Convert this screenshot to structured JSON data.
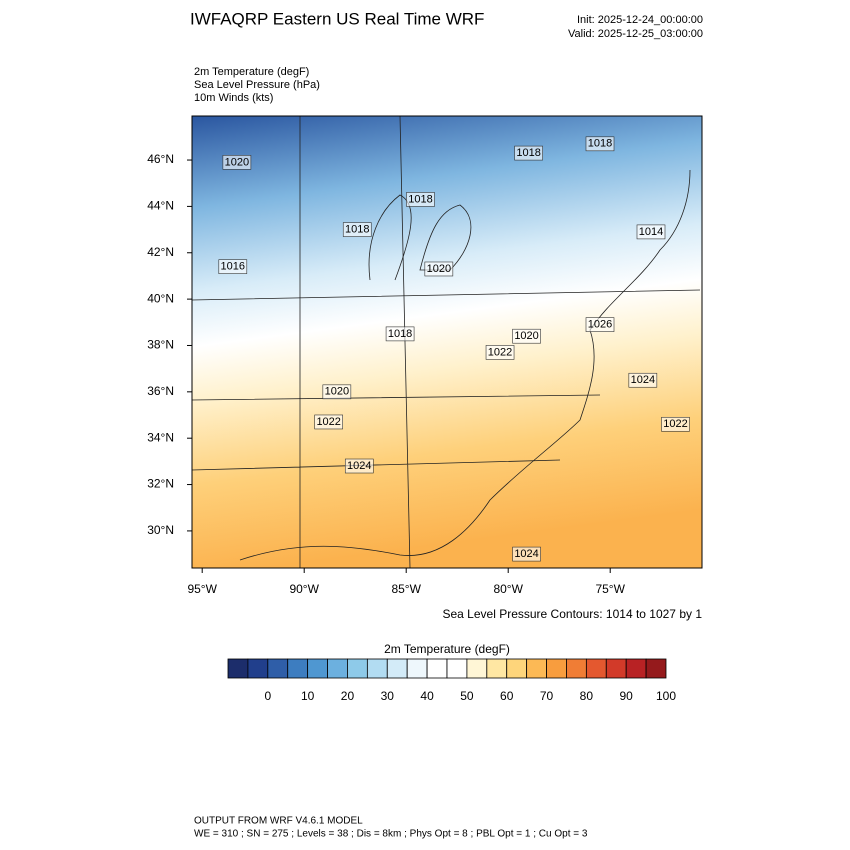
{
  "header": {
    "title": "IWFAQRP Eastern US Real Time WRF",
    "init": "Init: 2025-12-24_00:00:00",
    "valid": "Valid: 2025-12-25_03:00:00"
  },
  "fields": [
    "2m Temperature   (degF)",
    "Sea Level Pressure   (hPa)",
    "10m Winds   (kts)"
  ],
  "map": {
    "xlim": [
      -95.5,
      -70.5
    ],
    "ylim": [
      28.4,
      47.9
    ],
    "xticks": [
      {
        "value": -95,
        "label": "95°W"
      },
      {
        "value": -90,
        "label": "90°W"
      },
      {
        "value": -85,
        "label": "85°W"
      },
      {
        "value": -80,
        "label": "80°W"
      },
      {
        "value": -75,
        "label": "75°W"
      }
    ],
    "yticks": [
      {
        "value": 30,
        "label": "30°N"
      },
      {
        "value": 32,
        "label": "32°N"
      },
      {
        "value": 34,
        "label": "34°N"
      },
      {
        "value": 36,
        "label": "36°N"
      },
      {
        "value": 38,
        "label": "38°N"
      },
      {
        "value": 40,
        "label": "40°N"
      },
      {
        "value": 42,
        "label": "42°N"
      },
      {
        "value": 44,
        "label": "44°N"
      },
      {
        "value": 46,
        "label": "46°N"
      }
    ],
    "contour_labels": [
      {
        "label": "1020",
        "lon": -93.3,
        "lat": 45.9
      },
      {
        "label": "1018",
        "lon": -79.0,
        "lat": 46.3
      },
      {
        "label": "1018",
        "lon": -75.5,
        "lat": 46.7
      },
      {
        "label": "1018",
        "lon": -84.3,
        "lat": 44.3
      },
      {
        "label": "1018",
        "lon": -87.4,
        "lat": 43.0
      },
      {
        "label": "1016",
        "lon": -93.5,
        "lat": 41.4
      },
      {
        "label": "1020",
        "lon": -83.4,
        "lat": 41.3
      },
      {
        "label": "1014",
        "lon": -73.0,
        "lat": 42.9
      },
      {
        "label": "1026",
        "lon": -75.5,
        "lat": 38.9
      },
      {
        "label": "1018",
        "lon": -85.3,
        "lat": 38.5
      },
      {
        "label": "1022",
        "lon": -80.4,
        "lat": 37.7
      },
      {
        "label": "1020",
        "lon": -79.1,
        "lat": 38.4
      },
      {
        "label": "1024",
        "lon": -73.4,
        "lat": 36.5
      },
      {
        "label": "1020",
        "lon": -88.4,
        "lat": 36.0
      },
      {
        "label": "1022",
        "lon": -71.8,
        "lat": 34.6
      },
      {
        "label": "1022",
        "lon": -88.8,
        "lat": 34.7
      },
      {
        "label": "1024",
        "lon": -87.3,
        "lat": 32.8
      },
      {
        "label": "1024",
        "lon": -79.1,
        "lat": 29.0
      }
    ],
    "contour_caption": "Sea Level Pressure Contours: 1014 to 1027 by 1"
  },
  "colorbar": {
    "title": "2m Temperature  (degF)",
    "lim": [
      -10,
      100
    ],
    "ticks": [
      0,
      10,
      20,
      30,
      40,
      50,
      60,
      70,
      80,
      90,
      100
    ],
    "colors": [
      "#1c2d6b",
      "#213f8c",
      "#2f5ea8",
      "#3d7dc0",
      "#4f97d1",
      "#6cb0df",
      "#8ecae9",
      "#b2dcf2",
      "#d3ebf8",
      "#eef7fc",
      "#ffffff",
      "#ffffff",
      "#fff6d6",
      "#ffe7a3",
      "#fed57b",
      "#fcb955",
      "#f89d3e",
      "#f07d35",
      "#e4582f",
      "#d23a29",
      "#b82224",
      "#951a1c"
    ]
  },
  "footer": [
    "OUTPUT FROM WRF V4.6.1 MODEL",
    "WE = 310 ; SN = 275 ; Levels = 38 ; Dis = 8km ; Phys Opt = 8 ; PBL Opt = 1 ; Cu Opt = 3"
  ]
}
